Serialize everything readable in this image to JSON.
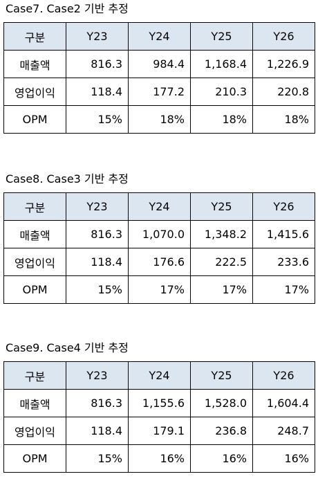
{
  "cases": [
    {
      "title": "Case7. Case2 기반 추정",
      "headers": [
        "구분",
        "Y23",
        "Y24",
        "Y25",
        "Y26"
      ],
      "rows": [
        {
          "label": "매출액",
          "values": [
            "816.3",
            "984.4",
            "1,168.4",
            "1,226.9"
          ]
        },
        {
          "label": "영업이익",
          "values": [
            "118.4",
            "177.2",
            "210.3",
            "220.8"
          ]
        },
        {
          "label": "OPM",
          "values": [
            "15%",
            "18%",
            "18%",
            "18%"
          ]
        }
      ]
    },
    {
      "title": "Case8. Case3 기반 추정",
      "headers": [
        "구분",
        "Y23",
        "Y24",
        "Y25",
        "Y26"
      ],
      "rows": [
        {
          "label": "매출액",
          "values": [
            "816.3",
            "1,070.0",
            "1,348.2",
            "1,415.6"
          ]
        },
        {
          "label": "영업이익",
          "values": [
            "118.4",
            "176.6",
            "222.5",
            "233.6"
          ]
        },
        {
          "label": "OPM",
          "values": [
            "15%",
            "17%",
            "17%",
            "17%"
          ]
        }
      ]
    },
    {
      "title": "Case9. Case4 기반 추정",
      "headers": [
        "구분",
        "Y23",
        "Y24",
        "Y25",
        "Y26"
      ],
      "rows": [
        {
          "label": "매출액",
          "values": [
            "816.3",
            "1,155.6",
            "1,528.0",
            "1,604.4"
          ]
        },
        {
          "label": "영업이익",
          "values": [
            "118.4",
            "179.1",
            "236.8",
            "248.7"
          ]
        },
        {
          "label": "OPM",
          "values": [
            "15%",
            "16%",
            "16%",
            "16%"
          ]
        }
      ]
    }
  ]
}
